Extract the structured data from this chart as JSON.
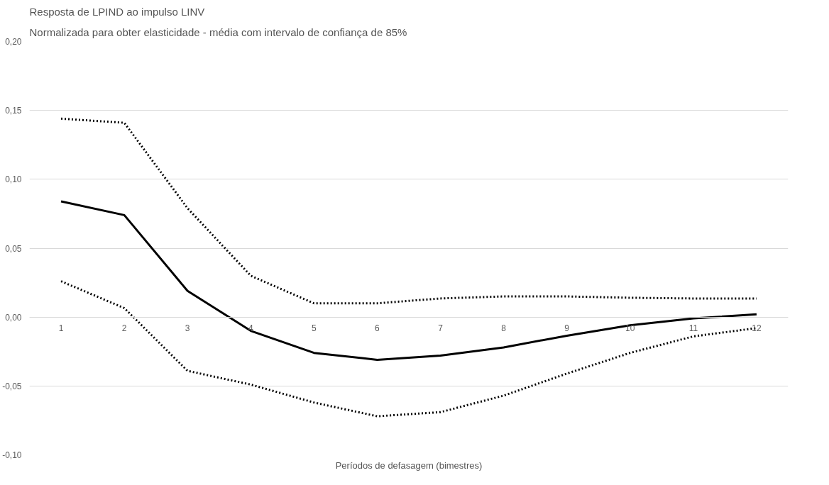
{
  "chart_data": {
    "type": "line",
    "title": "Resposta de LPIND ao impulso LINV",
    "subtitle": "Normalizada para obter elasticidade - média com intervalo de confiança de 85%",
    "xlabel": "Períodos de defasagem (bimestres)",
    "categories": [
      "1",
      "2",
      "3",
      "4",
      "5",
      "6",
      "7",
      "8",
      "9",
      "10",
      "11",
      "12"
    ],
    "series": [
      {
        "color": "#000000",
        "line_style": "dotted",
        "values": [
          0.144,
          0.141,
          0.079,
          0.03,
          0.01,
          0.01,
          0.0135,
          0.015,
          0.015,
          0.014,
          0.0135,
          0.0135
        ]
      },
      {
        "color": "#000000",
        "line_style": "solid",
        "values": [
          0.084,
          0.074,
          0.019,
          -0.01,
          -0.026,
          -0.031,
          -0.028,
          -0.022,
          -0.0135,
          -0.006,
          -0.001,
          0.002
        ]
      },
      {
        "color": "#000000",
        "line_style": "dotted",
        "values": [
          0.026,
          0.0065,
          -0.039,
          -0.049,
          -0.062,
          -0.072,
          -0.069,
          -0.057,
          -0.041,
          -0.026,
          -0.014,
          -0.008
        ]
      }
    ],
    "ylim": [
      -0.1,
      0.2
    ],
    "yticks": [
      {
        "value": -0.1,
        "label": "-0,10"
      },
      {
        "value": -0.05,
        "label": "-0,05"
      },
      {
        "value": 0,
        "label": "0,00"
      },
      {
        "value": 0.05,
        "label": "0,05"
      },
      {
        "value": 0.1,
        "label": "0,10"
      },
      {
        "value": 0.15,
        "label": "0,15"
      },
      {
        "value": 0.2,
        "label": "0,20"
      }
    ],
    "grid": "y",
    "marker": "none"
  }
}
